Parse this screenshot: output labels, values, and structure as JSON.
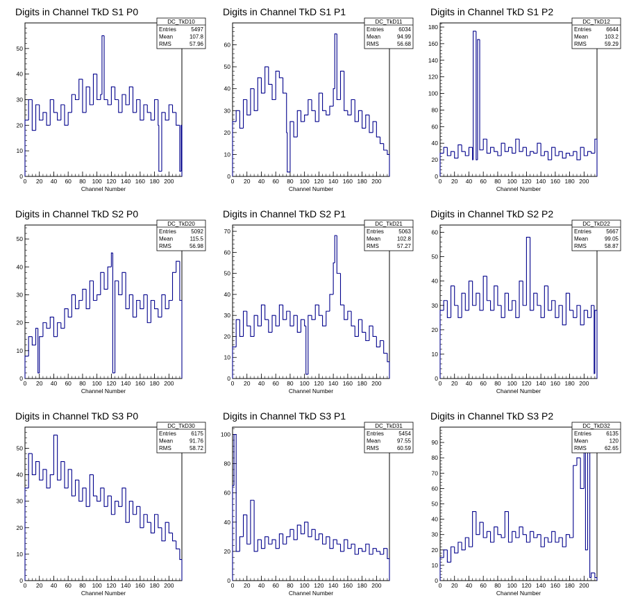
{
  "colors": {
    "histogram": "#00008b",
    "frame": "#000000",
    "background": "#ffffff"
  },
  "chart_data": [
    {
      "type": "histogram",
      "title": "Digits in Channel TkD S1 P0",
      "xlabel": "Channel Number",
      "ylabel": "",
      "xlim": [
        0,
        218
      ],
      "ylim": [
        0,
        60
      ],
      "xticks": [
        0,
        20,
        40,
        60,
        80,
        100,
        120,
        140,
        160,
        180,
        200
      ],
      "yticks": [
        0,
        10,
        20,
        30,
        40,
        50
      ],
      "stats": {
        "name": "DC_TkD10",
        "entries": "5497",
        "mean": "107.8",
        "rms": "57.96"
      },
      "x": [
        0,
        5,
        10,
        15,
        20,
        25,
        30,
        35,
        40,
        45,
        50,
        55,
        60,
        65,
        70,
        75,
        80,
        85,
        90,
        95,
        100,
        105,
        107,
        110,
        115,
        120,
        125,
        130,
        135,
        140,
        145,
        150,
        155,
        160,
        165,
        170,
        175,
        180,
        185,
        186,
        190,
        195,
        200,
        205,
        210,
        215,
        217
      ],
      "values": [
        22,
        30,
        18,
        28,
        22,
        25,
        20,
        30,
        25,
        22,
        28,
        20,
        25,
        32,
        30,
        38,
        25,
        35,
        28,
        40,
        30,
        32,
        55,
        30,
        28,
        35,
        30,
        25,
        32,
        28,
        35,
        25,
        30,
        22,
        28,
        25,
        22,
        30,
        20,
        2,
        25,
        22,
        28,
        25,
        20,
        2,
        20
      ]
    },
    {
      "type": "histogram",
      "title": "Digits in Channel TkD S1 P1",
      "xlabel": "Channel Number",
      "ylabel": "",
      "xlim": [
        0,
        218
      ],
      "ylim": [
        0,
        70
      ],
      "xticks": [
        0,
        20,
        40,
        60,
        80,
        100,
        120,
        140,
        160,
        180,
        200
      ],
      "yticks": [
        0,
        10,
        20,
        30,
        40,
        50,
        60
      ],
      "stats": {
        "name": "DC_TkD11",
        "entries": "6034",
        "mean": "94.99",
        "rms": "56.68"
      },
      "x": [
        0,
        5,
        10,
        15,
        20,
        25,
        30,
        35,
        40,
        45,
        50,
        55,
        60,
        65,
        70,
        75,
        76,
        80,
        85,
        90,
        95,
        100,
        105,
        110,
        115,
        120,
        125,
        130,
        135,
        140,
        142,
        145,
        150,
        155,
        160,
        165,
        170,
        175,
        180,
        185,
        190,
        195,
        200,
        205,
        210,
        215
      ],
      "values": [
        25,
        30,
        22,
        35,
        28,
        40,
        30,
        45,
        38,
        50,
        42,
        35,
        48,
        45,
        38,
        20,
        2,
        25,
        18,
        30,
        25,
        28,
        35,
        30,
        25,
        38,
        30,
        28,
        32,
        40,
        65,
        35,
        48,
        30,
        28,
        35,
        25,
        30,
        22,
        28,
        20,
        25,
        18,
        15,
        12,
        10
      ]
    },
    {
      "type": "histogram",
      "title": "Digits in Channel TkD S1 P2",
      "xlabel": "Channel Number",
      "ylabel": "",
      "xlim": [
        0,
        218
      ],
      "ylim": [
        0,
        185
      ],
      "xticks": [
        0,
        20,
        40,
        60,
        80,
        100,
        120,
        140,
        160,
        180,
        200
      ],
      "yticks": [
        0,
        20,
        40,
        60,
        80,
        100,
        120,
        140,
        160,
        180
      ],
      "stats": {
        "name": "DC_TkD12",
        "entries": "6644",
        "mean": "103.2",
        "rms": "59.29"
      },
      "x": [
        0,
        5,
        10,
        15,
        20,
        25,
        30,
        35,
        40,
        45,
        46,
        50,
        52,
        55,
        60,
        65,
        70,
        75,
        80,
        85,
        90,
        95,
        100,
        105,
        110,
        115,
        120,
        125,
        130,
        135,
        140,
        145,
        150,
        155,
        160,
        165,
        170,
        175,
        180,
        185,
        190,
        195,
        200,
        205,
        210,
        215
      ],
      "values": [
        28,
        35,
        25,
        30,
        22,
        38,
        30,
        25,
        35,
        20,
        175,
        20,
        165,
        32,
        45,
        28,
        35,
        30,
        25,
        40,
        30,
        35,
        28,
        45,
        30,
        35,
        25,
        30,
        28,
        40,
        25,
        30,
        20,
        35,
        25,
        30,
        22,
        28,
        25,
        30,
        20,
        35,
        25,
        30,
        28,
        45
      ]
    },
    {
      "type": "histogram",
      "title": "Digits in Channel TkD S2 P0",
      "xlabel": "Channel Number",
      "ylabel": "",
      "xlim": [
        0,
        218
      ],
      "ylim": [
        0,
        55
      ],
      "xticks": [
        0,
        20,
        40,
        60,
        80,
        100,
        120,
        140,
        160,
        180,
        200
      ],
      "yticks": [
        0,
        10,
        20,
        30,
        40,
        50
      ],
      "stats": {
        "name": "DC_TkD20",
        "entries": "5092",
        "mean": "115.5",
        "rms": "56.98"
      },
      "x": [
        0,
        5,
        10,
        15,
        18,
        20,
        25,
        30,
        35,
        40,
        45,
        50,
        55,
        60,
        65,
        70,
        75,
        80,
        85,
        90,
        95,
        100,
        105,
        110,
        115,
        120,
        122,
        125,
        130,
        135,
        140,
        145,
        150,
        155,
        160,
        165,
        170,
        175,
        180,
        185,
        190,
        195,
        200,
        205,
        210,
        215
      ],
      "values": [
        8,
        15,
        12,
        18,
        2,
        15,
        20,
        18,
        22,
        15,
        20,
        18,
        25,
        22,
        30,
        25,
        28,
        32,
        25,
        35,
        28,
        30,
        38,
        32,
        40,
        45,
        2,
        35,
        30,
        38,
        25,
        30,
        22,
        28,
        25,
        30,
        20,
        28,
        25,
        22,
        30,
        25,
        28,
        38,
        42,
        28
      ]
    },
    {
      "type": "histogram",
      "title": "Digits in Channel TkD S2 P1",
      "xlabel": "Channel Number",
      "ylabel": "",
      "xlim": [
        0,
        218
      ],
      "ylim": [
        0,
        73
      ],
      "xticks": [
        0,
        20,
        40,
        60,
        80,
        100,
        120,
        140,
        160,
        180,
        200
      ],
      "yticks": [
        0,
        10,
        20,
        30,
        40,
        50,
        60,
        70
      ],
      "stats": {
        "name": "DC_TkD21",
        "entries": "5063",
        "mean": "102.8",
        "rms": "57.27"
      },
      "x": [
        0,
        5,
        10,
        15,
        20,
        25,
        30,
        35,
        40,
        45,
        50,
        55,
        60,
        65,
        70,
        75,
        80,
        85,
        90,
        95,
        100,
        102,
        105,
        110,
        115,
        120,
        125,
        130,
        135,
        140,
        142,
        145,
        150,
        155,
        160,
        165,
        170,
        175,
        180,
        185,
        190,
        195,
        200,
        205,
        210,
        215
      ],
      "values": [
        15,
        28,
        20,
        32,
        25,
        20,
        30,
        25,
        35,
        28,
        22,
        30,
        25,
        35,
        28,
        32,
        25,
        30,
        22,
        28,
        25,
        2,
        30,
        28,
        35,
        30,
        25,
        32,
        40,
        55,
        68,
        50,
        35,
        28,
        32,
        25,
        20,
        28,
        22,
        18,
        25,
        20,
        15,
        18,
        12,
        8
      ]
    },
    {
      "type": "histogram",
      "title": "Digits in Channel TkD S2 P2",
      "xlabel": "Channel Number",
      "ylabel": "",
      "xlim": [
        0,
        218
      ],
      "ylim": [
        0,
        63
      ],
      "xticks": [
        0,
        20,
        40,
        60,
        80,
        100,
        120,
        140,
        160,
        180,
        200
      ],
      "yticks": [
        0,
        10,
        20,
        30,
        40,
        50,
        60
      ],
      "stats": {
        "name": "DC_TkD22",
        "entries": "5667",
        "mean": "99.05",
        "rms": "58.87"
      },
      "x": [
        0,
        5,
        10,
        15,
        20,
        25,
        30,
        35,
        40,
        45,
        50,
        55,
        60,
        65,
        70,
        75,
        80,
        85,
        90,
        95,
        100,
        105,
        110,
        115,
        120,
        125,
        130,
        135,
        140,
        145,
        150,
        155,
        160,
        165,
        170,
        175,
        180,
        185,
        190,
        195,
        200,
        205,
        210,
        214,
        215
      ],
      "values": [
        28,
        32,
        25,
        38,
        30,
        25,
        35,
        28,
        40,
        30,
        35,
        28,
        42,
        32,
        28,
        38,
        30,
        25,
        35,
        28,
        32,
        25,
        40,
        30,
        58,
        28,
        35,
        30,
        25,
        38,
        28,
        32,
        25,
        30,
        22,
        35,
        28,
        25,
        30,
        22,
        28,
        25,
        30,
        2,
        28
      ]
    },
    {
      "type": "histogram",
      "title": "Digits in Channel TkD S3 P0",
      "xlabel": "Channel Number",
      "ylabel": "",
      "xlim": [
        0,
        218
      ],
      "ylim": [
        0,
        58
      ],
      "xticks": [
        0,
        20,
        40,
        60,
        80,
        100,
        120,
        140,
        160,
        180,
        200
      ],
      "yticks": [
        0,
        10,
        20,
        30,
        40,
        50
      ],
      "stats": {
        "name": "DC_TkD30",
        "entries": "6175",
        "mean": "91.76",
        "rms": "58.72"
      },
      "x": [
        0,
        5,
        10,
        15,
        20,
        25,
        30,
        35,
        40,
        45,
        50,
        55,
        60,
        65,
        70,
        75,
        80,
        85,
        90,
        95,
        100,
        105,
        110,
        115,
        120,
        125,
        130,
        135,
        140,
        145,
        150,
        155,
        160,
        165,
        170,
        175,
        180,
        185,
        190,
        195,
        200,
        205,
        210,
        215
      ],
      "values": [
        35,
        48,
        40,
        45,
        38,
        42,
        35,
        40,
        55,
        38,
        45,
        35,
        42,
        32,
        38,
        30,
        35,
        28,
        40,
        32,
        30,
        35,
        28,
        32,
        25,
        30,
        28,
        35,
        22,
        30,
        25,
        28,
        20,
        25,
        22,
        18,
        25,
        20,
        15,
        22,
        18,
        15,
        12,
        8
      ]
    },
    {
      "type": "histogram",
      "title": "Digits in Channel TkD S3 P1",
      "xlabel": "Channel Number",
      "ylabel": "",
      "xlim": [
        0,
        218
      ],
      "ylim": [
        0,
        105
      ],
      "xticks": [
        0,
        20,
        40,
        60,
        80,
        100,
        120,
        140,
        160,
        180,
        200
      ],
      "yticks": [
        0,
        20,
        40,
        60,
        80,
        100
      ],
      "stats": {
        "name": "DC_TkD31",
        "entries": "5454",
        "mean": "97.55",
        "rms": "60.59"
      },
      "x": [
        0,
        2,
        5,
        10,
        15,
        20,
        25,
        30,
        35,
        40,
        45,
        50,
        55,
        60,
        65,
        70,
        75,
        80,
        85,
        90,
        95,
        100,
        105,
        110,
        115,
        120,
        125,
        130,
        135,
        140,
        145,
        150,
        155,
        160,
        165,
        170,
        175,
        180,
        185,
        190,
        195,
        200,
        205,
        210,
        215
      ],
      "values": [
        65,
        100,
        20,
        30,
        45,
        25,
        55,
        20,
        28,
        22,
        30,
        25,
        28,
        22,
        32,
        25,
        30,
        35,
        28,
        38,
        32,
        40,
        30,
        35,
        28,
        32,
        25,
        30,
        22,
        28,
        25,
        20,
        28,
        22,
        25,
        18,
        22,
        20,
        25,
        18,
        22,
        20,
        18,
        22,
        15
      ]
    },
    {
      "type": "histogram",
      "title": "Digits in Channel TkD S3 P2",
      "xlabel": "Channel Number",
      "ylabel": "",
      "xlim": [
        0,
        218
      ],
      "ylim": [
        0,
        100
      ],
      "xticks": [
        0,
        20,
        40,
        60,
        80,
        100,
        120,
        140,
        160,
        180,
        200
      ],
      "yticks": [
        0,
        10,
        20,
        30,
        40,
        50,
        60,
        70,
        80,
        90
      ],
      "stats": {
        "name": "DC_TkD32",
        "entries": "6135",
        "mean": "120",
        "rms": "62.65"
      },
      "x": [
        0,
        5,
        10,
        15,
        20,
        25,
        30,
        35,
        40,
        45,
        50,
        55,
        60,
        65,
        70,
        75,
        80,
        85,
        90,
        95,
        100,
        105,
        110,
        115,
        120,
        125,
        130,
        135,
        140,
        145,
        150,
        155,
        160,
        165,
        170,
        175,
        180,
        185,
        190,
        195,
        200,
        202,
        205,
        208,
        210,
        215
      ],
      "values": [
        15,
        20,
        12,
        22,
        18,
        25,
        20,
        28,
        22,
        45,
        30,
        38,
        28,
        32,
        25,
        35,
        30,
        28,
        45,
        25,
        32,
        28,
        35,
        30,
        25,
        32,
        28,
        30,
        22,
        28,
        25,
        32,
        25,
        28,
        22,
        30,
        28,
        75,
        80,
        60,
        85,
        20,
        90,
        2,
        5,
        2
      ]
    }
  ]
}
